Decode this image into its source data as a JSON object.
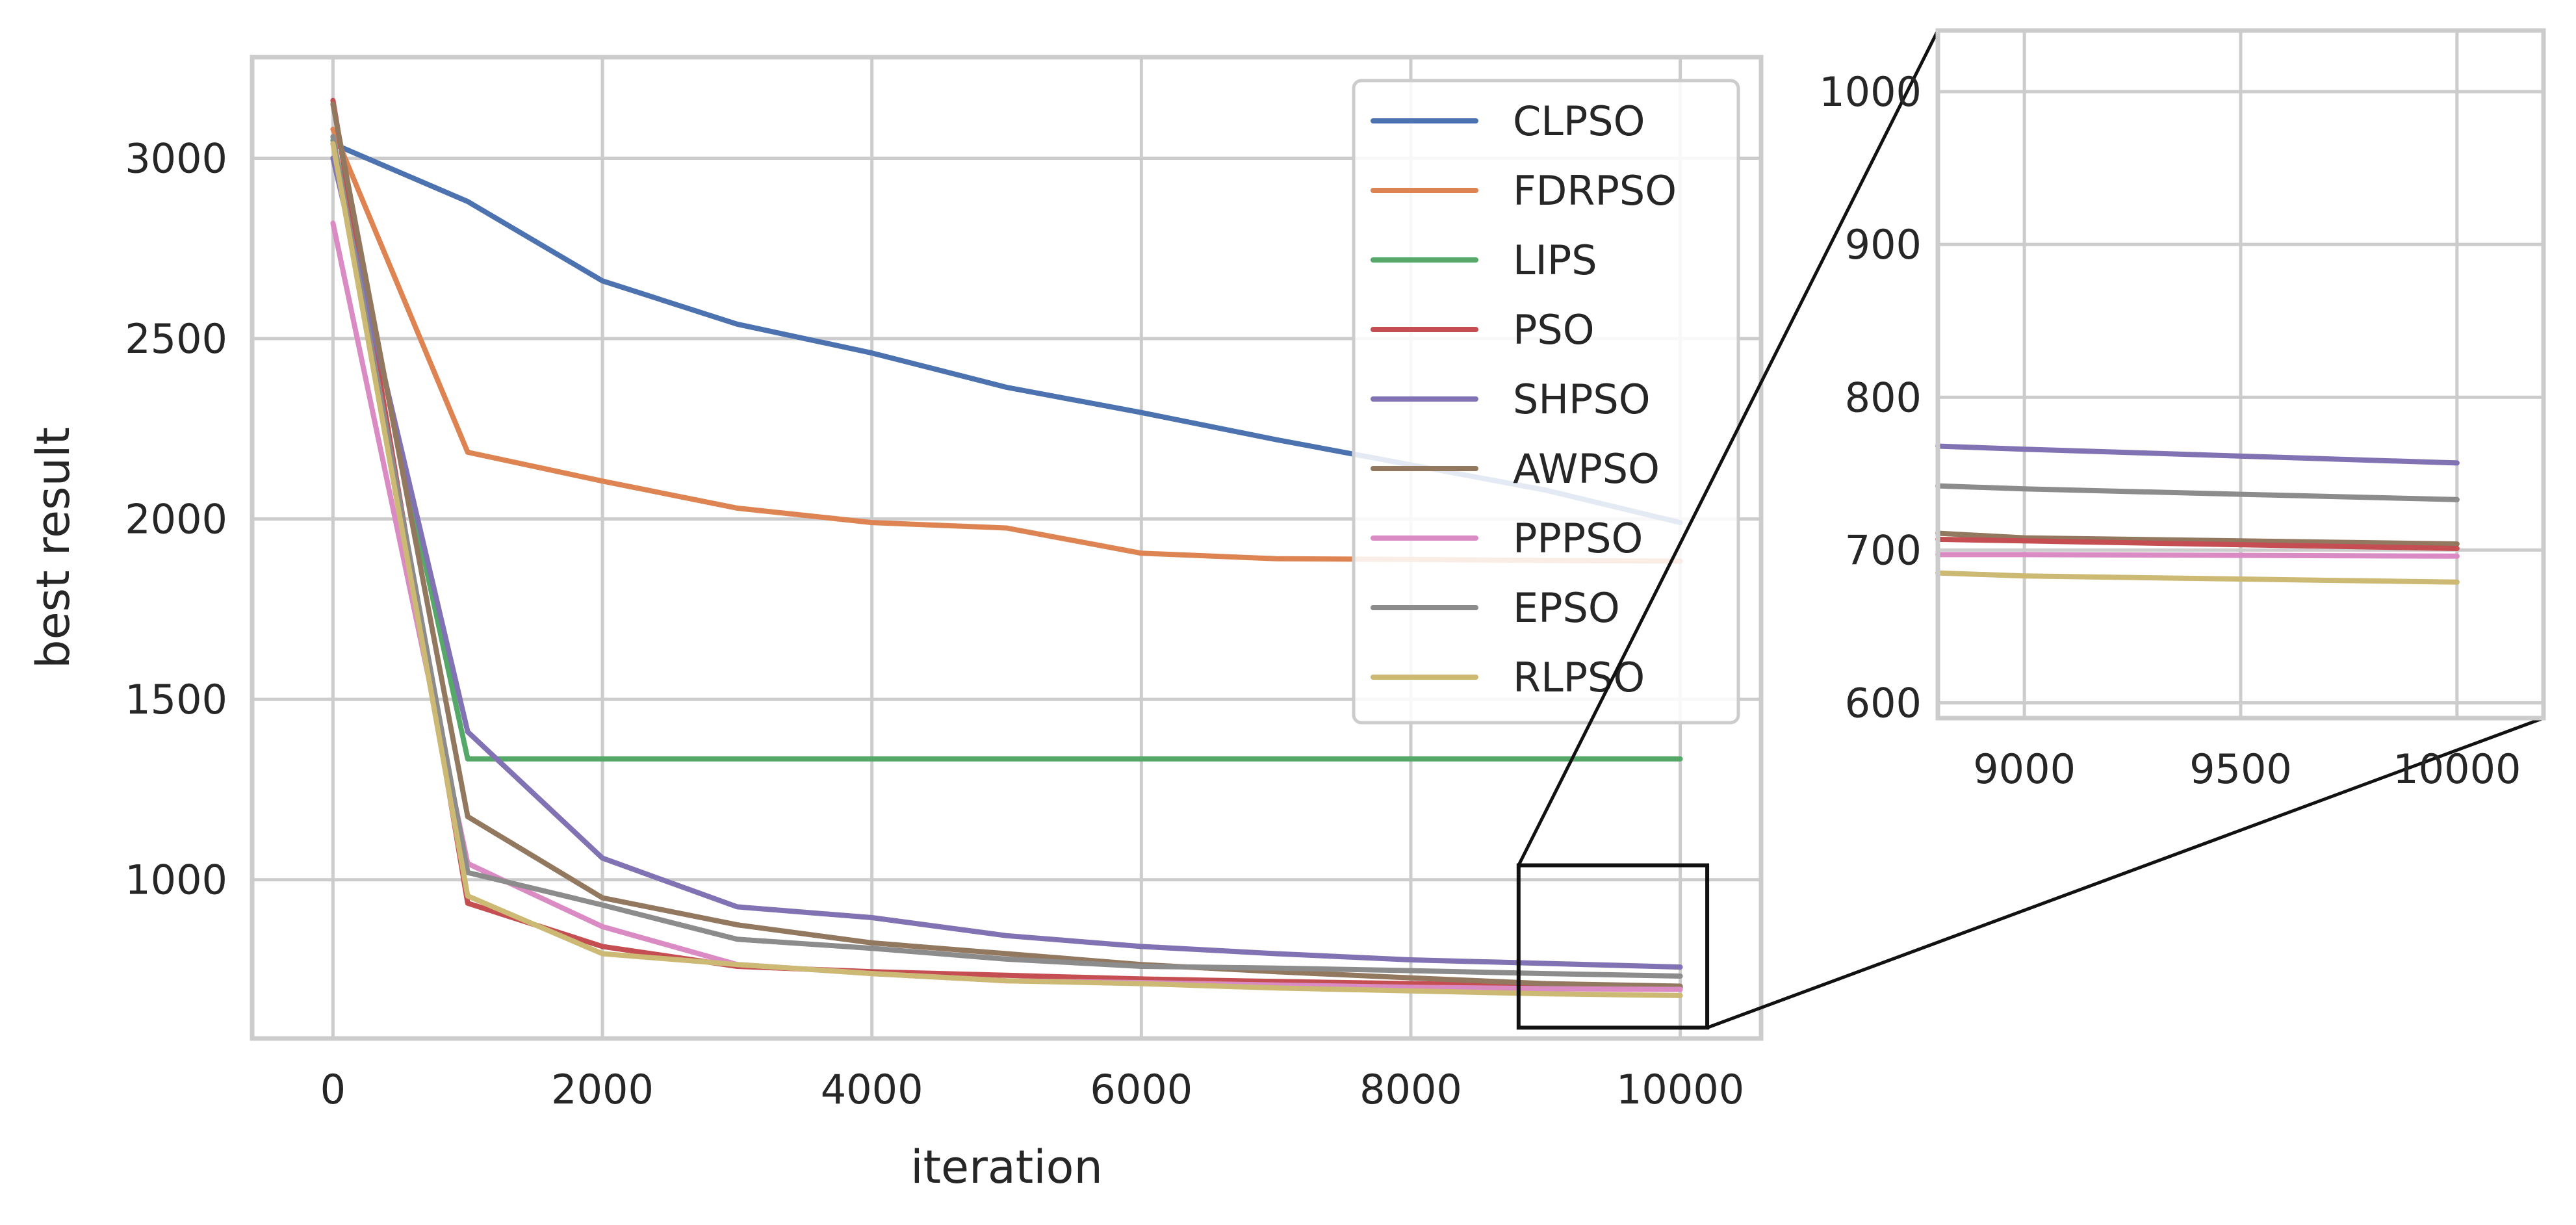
{
  "chart_data": [
    {
      "type": "line",
      "xlabel": "iteration",
      "ylabel": "best result",
      "xlim": [
        -600,
        10600
      ],
      "ylim": [
        560,
        3280
      ],
      "xticks": [
        0,
        2000,
        4000,
        6000,
        8000,
        10000
      ],
      "yticks": [
        1000,
        1500,
        2000,
        2500,
        3000
      ],
      "grid": true,
      "legend_position": "top-right",
      "x": [
        0,
        1000,
        2000,
        3000,
        4000,
        5000,
        6000,
        7000,
        8000,
        9000,
        10000
      ],
      "series": [
        {
          "name": "CLPSO",
          "color": "#4c72b0",
          "values": [
            3040,
            2880,
            2660,
            2540,
            2460,
            2365,
            2295,
            2220,
            2150,
            2080,
            1990
          ]
        },
        {
          "name": "FDRPSO",
          "color": "#dd8452",
          "values": [
            3080,
            2185,
            2105,
            2030,
            1990,
            1975,
            1905,
            1890,
            1888,
            1885,
            1883
          ]
        },
        {
          "name": "LIPS",
          "color": "#55a868",
          "values": [
            3050,
            1335,
            1335,
            1335,
            1335,
            1335,
            1335,
            1335,
            1335,
            1335,
            1335
          ]
        },
        {
          "name": "PSO",
          "color": "#c44e52",
          "values": [
            3160,
            935,
            815,
            760,
            745,
            735,
            725,
            718,
            712,
            707,
            702
          ]
        },
        {
          "name": "SHPSO",
          "color": "#8172b3",
          "values": [
            3000,
            1410,
            1060,
            925,
            895,
            845,
            815,
            795,
            778,
            768,
            758
          ]
        },
        {
          "name": "AWPSO",
          "color": "#937860",
          "values": [
            3150,
            1175,
            950,
            875,
            825,
            795,
            765,
            745,
            728,
            712,
            705
          ]
        },
        {
          "name": "PPPSO",
          "color": "#da8bc3",
          "values": [
            2820,
            1045,
            870,
            765,
            740,
            720,
            715,
            708,
            702,
            698,
            696
          ]
        },
        {
          "name": "EPSO",
          "color": "#8c8c8c",
          "values": [
            3060,
            1020,
            930,
            835,
            810,
            780,
            760,
            755,
            748,
            740,
            733
          ]
        },
        {
          "name": "RLPSO",
          "color": "#ccb974",
          "values": [
            3040,
            955,
            795,
            765,
            740,
            720,
            712,
            700,
            692,
            684,
            679
          ]
        }
      ]
    },
    {
      "type": "line",
      "xlim": [
        8800,
        10200
      ],
      "ylim": [
        590,
        1040
      ],
      "xticks": [
        9000,
        9500,
        10000
      ],
      "yticks": [
        600,
        700,
        800,
        900,
        1000
      ],
      "grid": true,
      "x": [
        8800,
        9000,
        10000
      ],
      "series": [
        {
          "color": "#8172b3",
          "values": [
            768,
            766,
            757
          ]
        },
        {
          "color": "#8c8c8c",
          "values": [
            742,
            740,
            733
          ]
        },
        {
          "color": "#937860",
          "values": [
            711,
            708,
            704
          ]
        },
        {
          "color": "#c44e52",
          "values": [
            707,
            706,
            701
          ]
        },
        {
          "color": "#da8bc3",
          "values": [
            697,
            697,
            696
          ]
        },
        {
          "color": "#ccb974",
          "values": [
            685,
            683,
            679
          ]
        }
      ]
    }
  ]
}
